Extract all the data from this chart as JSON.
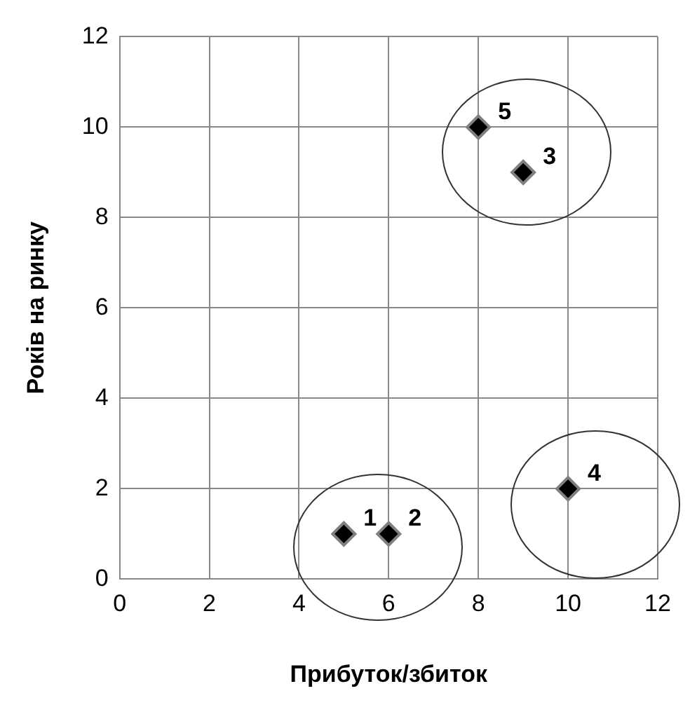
{
  "chart_data": {
    "type": "scatter",
    "xlabel": "Прибуток/збиток",
    "ylabel": "Років на ринку",
    "x": [
      5,
      6,
      9,
      10,
      8
    ],
    "values": [
      1,
      1,
      9,
      2,
      10
    ],
    "color": "#000000",
    "marker": "diamond",
    "grid": true,
    "xlim": [
      0,
      12
    ],
    "xticks": [
      0,
      2,
      4,
      6,
      8,
      10,
      12
    ],
    "ylim": [
      0,
      12
    ],
    "yticks": [
      0,
      2,
      4,
      6,
      8,
      10,
      12
    ],
    "annotations": [
      {
        "text": "1",
        "x": 5,
        "y": 1
      },
      {
        "text": "2",
        "x": 6,
        "y": 1
      },
      {
        "text": "3",
        "x": 9,
        "y": 9
      },
      {
        "text": "4",
        "x": 10,
        "y": 2
      },
      {
        "text": "5",
        "x": 8,
        "y": 10
      }
    ]
  }
}
